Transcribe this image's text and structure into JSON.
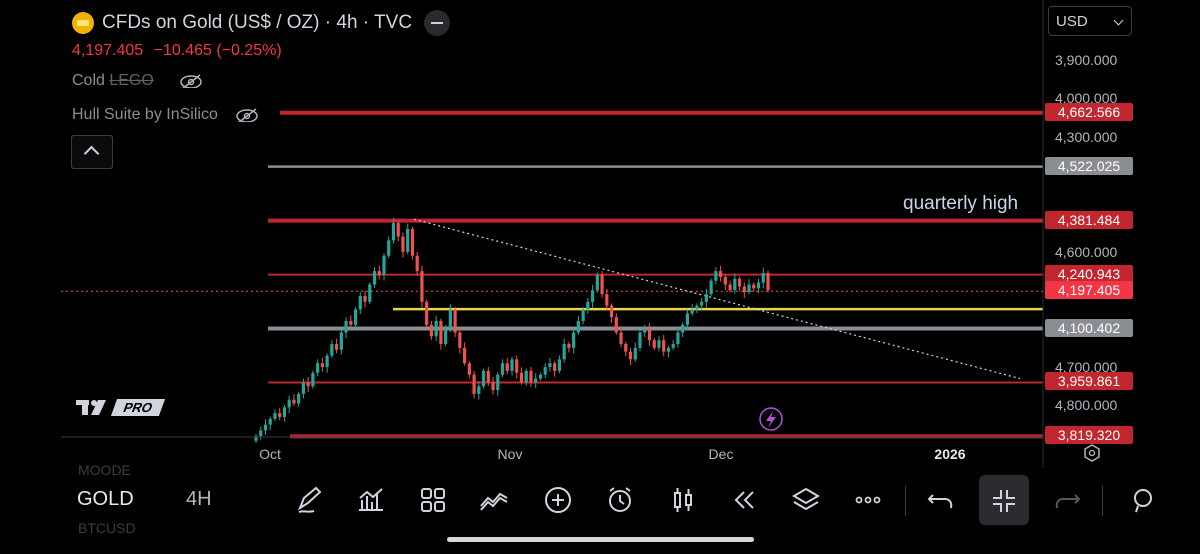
{
  "header": {
    "title": "CFDs on Gold (US$ / OZ) · 4h · TVC",
    "last_price": "4,197.405",
    "change": "−10.465 (−0.25%)"
  },
  "indicators": [
    {
      "name_prefix": "Cold ",
      "name_legacy": "LEGO"
    },
    {
      "name_prefix": "Hull Suite by InSilico",
      "name_legacy": ""
    }
  ],
  "currency": "USD",
  "branding": {
    "logo_text": "TV",
    "plan": "PRO"
  },
  "annotation": "quarterly high",
  "price_axis": {
    "ticks": [
      "4,800.000",
      "4,700.000",
      "4,600.000",
      "4,300.000",
      "4,000.000",
      "3,900.000"
    ],
    "tags": [
      {
        "label": "4,662.566",
        "color": "#c2262e"
      },
      {
        "label": "4,522.025",
        "color": "#8a8d94"
      },
      {
        "label": "4,381.484",
        "color": "#c2262e"
      },
      {
        "label": "4,240.943",
        "color": "#c2262e"
      },
      {
        "label": "4,197.405",
        "color": "#f23645"
      },
      {
        "label": "4,100.402",
        "color": "#8a8d94"
      },
      {
        "label": "3,959.861",
        "color": "#c2262e"
      },
      {
        "label": "3,819.320",
        "color": "#c2262e"
      }
    ]
  },
  "time_axis": {
    "labels": [
      "Oct",
      "Nov",
      "Dec",
      "2026"
    ]
  },
  "bottom": {
    "symbol": "GOLD",
    "timeframe": "4H",
    "ghost_above": "MOODE",
    "ghost_below": "BTCUSD"
  },
  "tools": [
    "draw-pencil-icon",
    "indicators-chart-icon",
    "layout-grid-icon",
    "trend-drawing-icon",
    "add-circle-icon",
    "alert-clock-icon",
    "bar-style-icon",
    "replay-rewind-icon",
    "layers-icon",
    "more-dots-icon",
    "undo-icon",
    "collapse-arrows-icon",
    "redo-icon"
  ],
  "colors": {
    "bull": "#26a69a",
    "bear": "#ef5350",
    "level_red": "#c2262e",
    "level_gray": "#8a8d94",
    "yellow": "#e6d74a",
    "bg": "#000000"
  },
  "chart_data": {
    "type": "candlestick",
    "y_ticks": [
      3900,
      4000,
      4300,
      4600,
      4700,
      4800
    ],
    "ylim": [
      3800,
      4870
    ],
    "last_price": 4197.405,
    "horizontal_levels": [
      {
        "value": 4662.566,
        "style": "red-thick"
      },
      {
        "value": 4522.025,
        "style": "gray"
      },
      {
        "value": 4381.484,
        "style": "red-thick"
      },
      {
        "value": 4240.943,
        "style": "red-thin"
      },
      {
        "value": 4151.0,
        "style": "yellow"
      },
      {
        "value": 4100.402,
        "style": "gray-thick"
      },
      {
        "value": 3959.861,
        "style": "red-thin"
      },
      {
        "value": 3819.32,
        "style": "red-thick"
      }
    ],
    "trendline": {
      "from": 4385,
      "to": 3970,
      "style": "dotted"
    },
    "x_labels": [
      "Oct",
      "Nov",
      "Dec",
      "2026"
    ],
    "closes": [
      3820,
      3835,
      3850,
      3865,
      3880,
      3870,
      3895,
      3915,
      3905,
      3930,
      3960,
      3950,
      3985,
      4010,
      4000,
      4030,
      4060,
      4045,
      4090,
      4120,
      4110,
      4150,
      4185,
      4170,
      4215,
      4250,
      4240,
      4290,
      4330,
      4375,
      4340,
      4300,
      4360,
      4290,
      4250,
      4170,
      4110,
      4080,
      4120,
      4060,
      4100,
      4150,
      4090,
      4050,
      4010,
      3980,
      3930,
      3950,
      3990,
      3960,
      3940,
      3980,
      4010,
      3990,
      4020,
      3985,
      3960,
      3990,
      3960,
      3970,
      3980,
      4000,
      4010,
      3990,
      4020,
      4060,
      4050,
      4090,
      4120,
      4150,
      4170,
      4200,
      4240,
      4190,
      4160,
      4130,
      4090,
      4060,
      4040,
      4020,
      4050,
      4090,
      4100,
      4070,
      4050,
      4070,
      4040,
      4050,
      4060,
      4090,
      4110,
      4140,
      4150,
      4160,
      4170,
      4190,
      4225,
      4250,
      4235,
      4215,
      4200,
      4230,
      4210,
      4195,
      4215,
      4205,
      4220,
      4245,
      4200
    ]
  }
}
